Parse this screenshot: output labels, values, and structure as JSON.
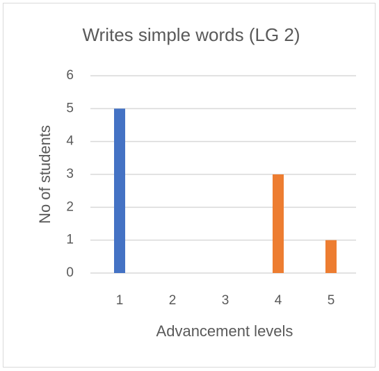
{
  "chart_data": {
    "type": "bar",
    "title": "Writes simple words (LG 2)",
    "categories": [
      "1",
      "2",
      "3",
      "4",
      "5"
    ],
    "values": [
      5,
      0,
      0,
      3,
      1
    ],
    "colors": [
      "#4472c4",
      "#ed7d31",
      "#ed7d31",
      "#ed7d31",
      "#ed7d31"
    ],
    "x_label": "Advancement levels",
    "y_label": "No of students",
    "ylim": [
      0,
      6
    ],
    "yticks": [
      0,
      1,
      2,
      3,
      4,
      5,
      6
    ],
    "grid": true
  }
}
